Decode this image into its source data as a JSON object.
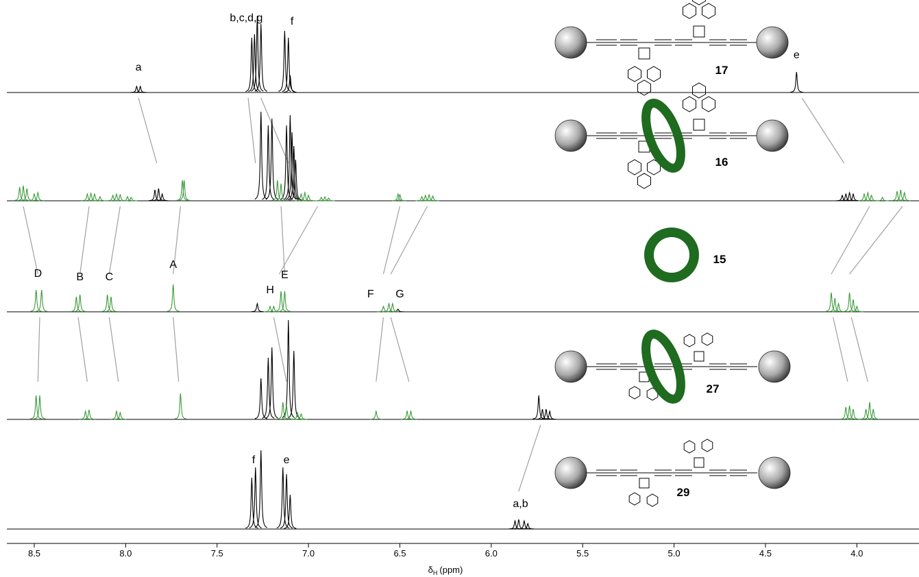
{
  "chart_data": {
    "type": "spectrum",
    "xlim": [
      8.65,
      3.66
    ],
    "xticks": [
      8.5,
      {
        "value": 8,
        "label": "8.0"
      },
      7.5,
      {
        "value": 7,
        "label": "7.0"
      },
      6.5,
      {
        "value": 6,
        "label": "6.0"
      },
      5.5,
      {
        "value": 5,
        "label": "5.0"
      },
      4.5,
      {
        "value": 4,
        "label": "4.0"
      }
    ],
    "x_label": {
      "symbol": "δ",
      "subscript": "H",
      "unit": "(ppm)"
    },
    "spectra": [
      {
        "label": "17",
        "series": [
          {
            "color": "#000000",
            "x": [
              7.94,
              7.92,
              7.31,
              7.295,
              7.28,
              7.26,
              7.13,
              7.11,
              7.1,
              4.33
            ],
            "values": [
              9,
              9,
              80,
              85,
              112,
              100,
              90,
              80,
              25,
              30
            ]
          }
        ],
        "labels": [
          {
            "text": "a",
            "x": 7.93,
            "y": 28
          },
          {
            "text": "b,c,d,g",
            "x": 7.34,
            "y": 100
          },
          {
            "text": "f",
            "x": 7.09,
            "y": 95
          },
          {
            "text": "e",
            "x": 4.33,
            "y": 46
          }
        ],
        "links": [
          [
            7.93,
            7.83
          ],
          [
            7.33,
            7.29
          ],
          [
            7.26,
            7.11
          ],
          [
            4.3,
            4.07
          ]
        ]
      },
      {
        "label": "16",
        "series": [
          {
            "color": "#000000",
            "x": [
              7.84,
              7.82,
              7.8,
              7.26,
              7.22,
              7.2,
              7.12,
              7.1,
              7.09,
              7.08,
              7.07,
              4.08,
              4.06,
              4.04,
              4.02
            ],
            "values": [
              16,
              18,
              10,
              130,
              110,
              120,
              110,
              125,
              100,
              80,
              60,
              8,
              10,
              12,
              10
            ]
          },
          {
            "color": "#3c9a3c",
            "x": [
              8.58,
              8.56,
              8.54,
              8.5,
              8.48,
              8.21,
              8.19,
              8.17,
              8.14,
              8.07,
              8.05,
              8.03,
              7.99,
              7.97,
              7.69,
              7.68,
              7.17,
              7.15,
              7.04,
              7.02,
              7.0,
              6.93,
              6.91,
              6.89,
              6.51,
              6.5,
              6.38,
              6.36,
              6.34,
              6.32,
              3.96,
              3.94,
              3.92,
              3.86,
              3.78,
              3.76,
              3.74
            ],
            "values": [
              20,
              22,
              18,
              10,
              12,
              10,
              11,
              10,
              6,
              8,
              10,
              9,
              6,
              5,
              30,
              30,
              30,
              25,
              10,
              12,
              8,
              5,
              6,
              4,
              10,
              9,
              6,
              8,
              9,
              7,
              10,
              12,
              8,
              5,
              14,
              16,
              12
            ]
          }
        ],
        "labels": [],
        "links": [
          [
            8.56,
            8.48
          ],
          [
            8.2,
            8.25
          ],
          [
            8.03,
            8.09
          ],
          [
            7.7,
            7.74
          ],
          [
            7.15,
            7.13
          ],
          [
            6.95,
            7.16
          ],
          [
            6.5,
            6.59
          ],
          [
            6.35,
            6.55
          ],
          [
            3.93,
            4.14
          ],
          [
            3.75,
            4.04
          ]
        ]
      },
      {
        "label": "15",
        "series": [
          {
            "color": "#000000",
            "x": [
              7.28,
              6.51
            ],
            "values": [
              12,
              4
            ]
          },
          {
            "color": "#3c9a3c",
            "x": [
              8.49,
              8.46,
              8.27,
              8.25,
              8.1,
              8.08,
              7.74,
              7.21,
              7.19,
              7.15,
              7.13,
              6.59,
              6.56,
              6.54,
              4.14,
              4.12,
              4.1,
              4.04,
              4.02,
              4.0
            ],
            "values": [
              32,
              32,
              22,
              25,
              25,
              22,
              40,
              8,
              8,
              30,
              30,
              8,
              12,
              12,
              28,
              20,
              12,
              28,
              18,
              8
            ]
          }
        ],
        "labels": [
          {
            "text": "D",
            "x": 8.48,
            "y": 47
          },
          {
            "text": "B",
            "x": 8.25,
            "y": 42
          },
          {
            "text": "C",
            "x": 8.09,
            "y": 42
          },
          {
            "text": "A",
            "x": 7.74,
            "y": 60
          },
          {
            "text": "H",
            "x": 7.21,
            "y": 23
          },
          {
            "text": "E",
            "x": 7.13,
            "y": 45
          },
          {
            "text": "F",
            "x": 6.66,
            "y": 17
          },
          {
            "text": "G",
            "x": 6.5,
            "y": 17
          }
        ],
        "links": [
          [
            8.47,
            8.48
          ],
          [
            8.26,
            8.21
          ],
          [
            8.09,
            8.04
          ],
          [
            7.74,
            7.71
          ],
          [
            7.19,
            7.12
          ],
          [
            6.59,
            6.63
          ],
          [
            6.55,
            6.45
          ],
          [
            4.13,
            4.05
          ],
          [
            4.03,
            3.94
          ]
        ]
      },
      {
        "label": "27",
        "series": [
          {
            "color": "#000000",
            "x": [
              7.26,
              7.22,
              7.2,
              7.11,
              7.08,
              5.74,
              5.72,
              5.7,
              5.68
            ],
            "values": [
              60,
              90,
              105,
              145,
              100,
              35,
              15,
              15,
              12
            ]
          },
          {
            "color": "#3c9a3c",
            "x": [
              8.49,
              8.47,
              8.22,
              8.2,
              8.05,
              8.03,
              7.7,
              7.14,
              7.12,
              7.06,
              7.04,
              6.63,
              6.46,
              6.44,
              4.06,
              4.04,
              4.02,
              3.95,
              3.93,
              3.91
            ],
            "values": [
              35,
              35,
              12,
              14,
              12,
              10,
              38,
              25,
              20,
              10,
              8,
              12,
              12,
              12,
              18,
              20,
              15,
              15,
              25,
              15
            ]
          }
        ],
        "labels": [],
        "links": [
          [
            5.73,
            5.85
          ]
        ]
      },
      {
        "label": "29",
        "series": [
          {
            "color": "#000000",
            "x": [
              7.31,
              7.29,
              7.26,
              7.14,
              7.12,
              7.1,
              5.87,
              5.85,
              5.82,
              5.8
            ],
            "values": [
              75,
              90,
              115,
              90,
              80,
              50,
              12,
              14,
              12,
              8
            ]
          }
        ],
        "labels": [
          {
            "text": "f",
            "x": 7.3,
            "y": 92
          },
          {
            "text": "e",
            "x": 7.12,
            "y": 92
          },
          {
            "text": "a,b",
            "x": 5.84,
            "y": 28
          }
        ],
        "links": []
      }
    ]
  }
}
